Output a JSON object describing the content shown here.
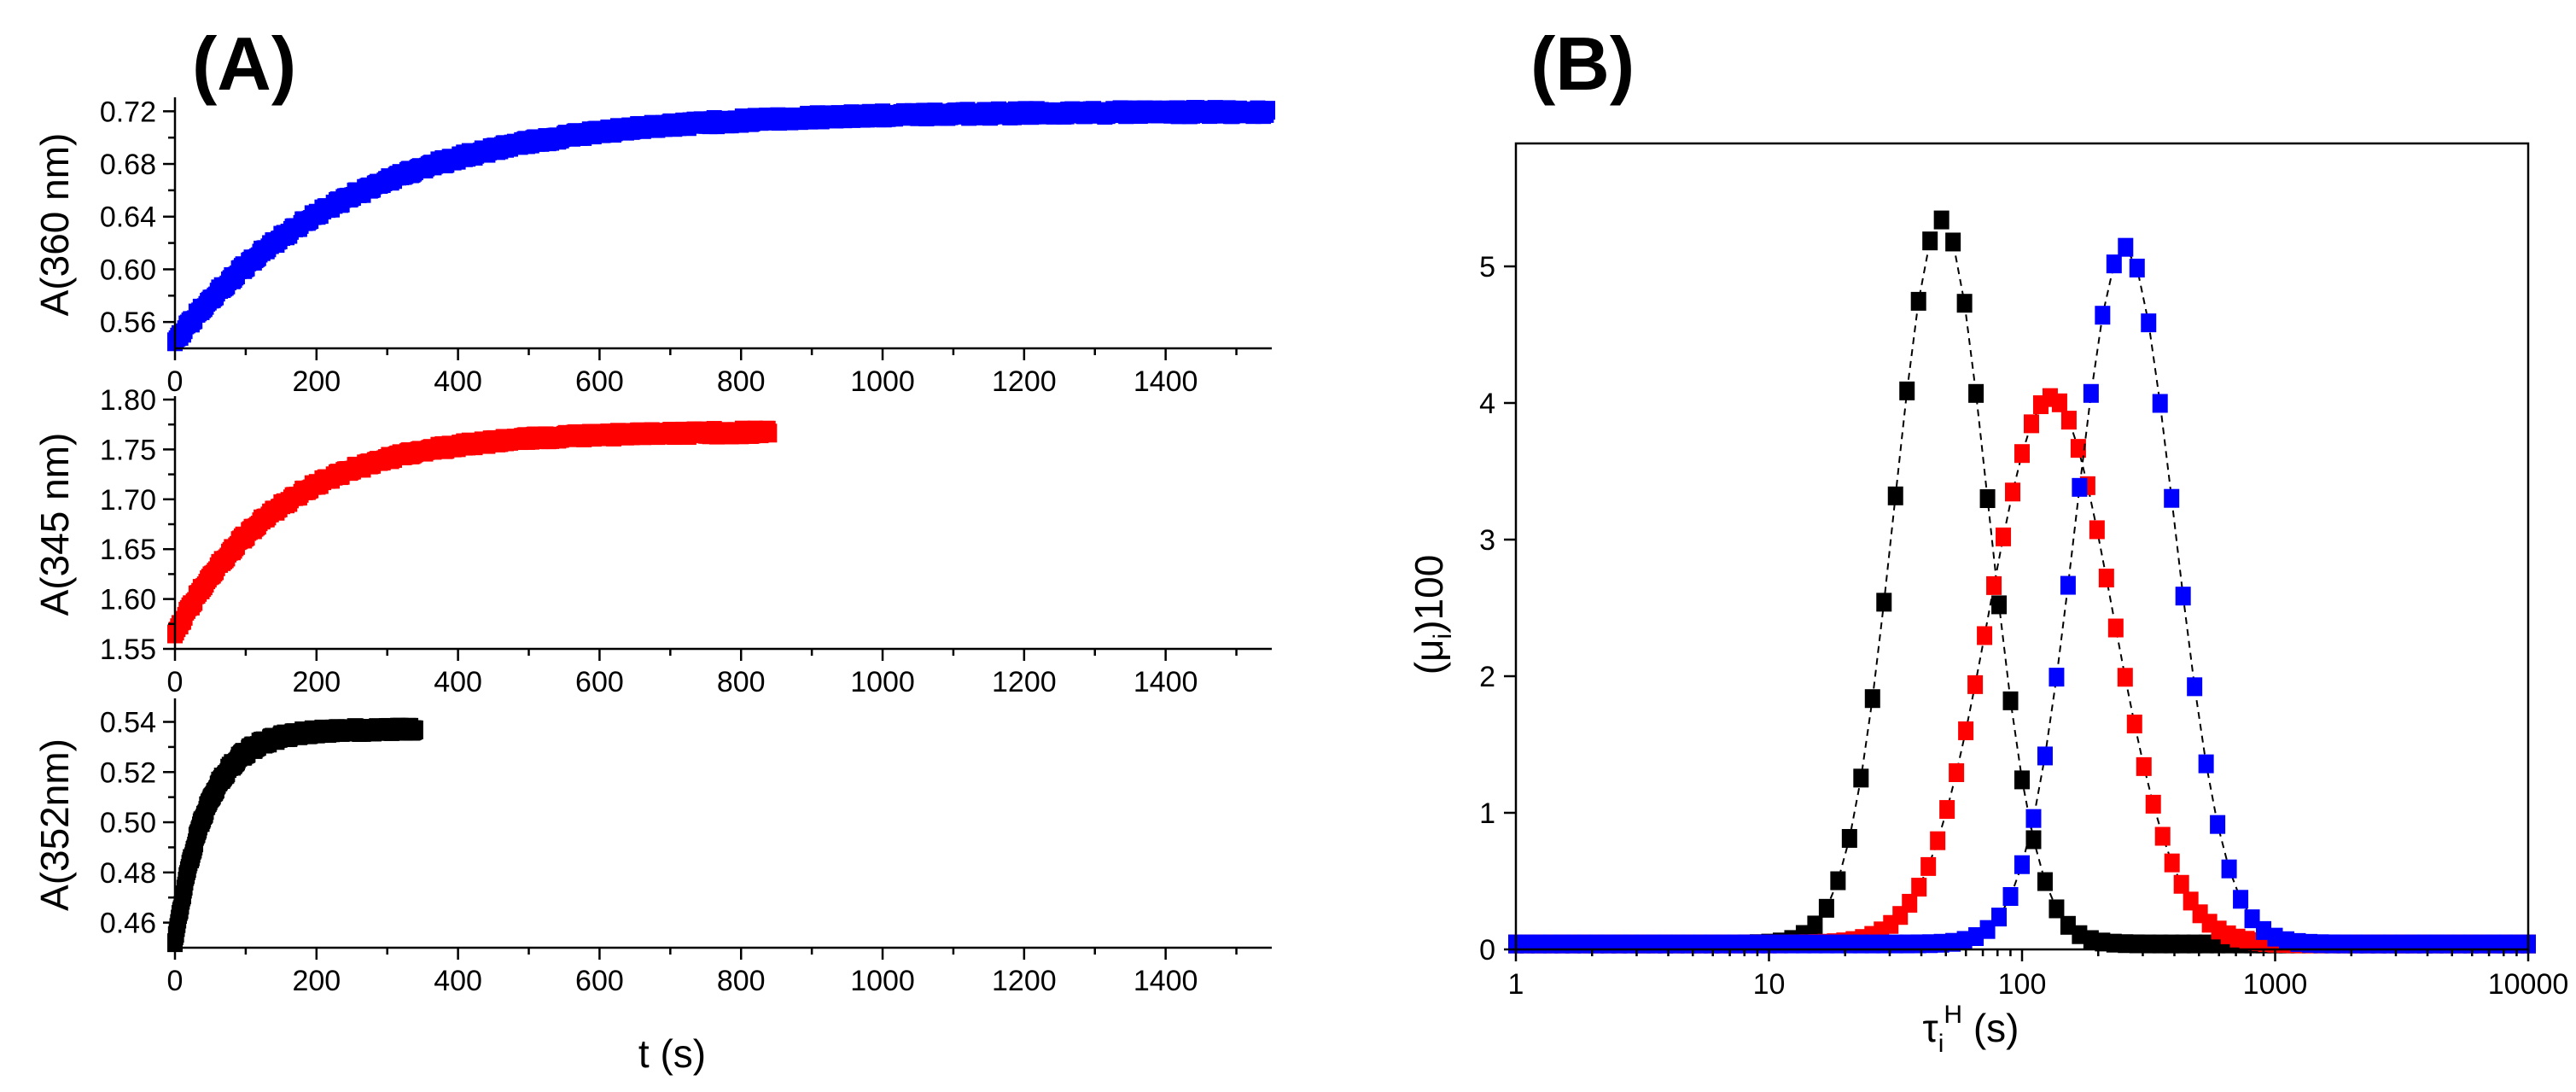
{
  "panels": {
    "A": {
      "letter": "(A)"
    },
    "B": {
      "letter": "(B)"
    }
  },
  "chart_data": [
    {
      "id": "A1",
      "type": "scatter",
      "title": "",
      "xlabel": "t (s)",
      "ylabel": "A(360 nm)",
      "xlim": [
        0,
        1550
      ],
      "ylim": [
        0.54,
        0.728
      ],
      "xticks": [
        0,
        200,
        400,
        600,
        800,
        1000,
        1200,
        1400
      ],
      "yticks": [
        0.56,
        0.6,
        0.64,
        0.68,
        0.72
      ],
      "ytick_labels": [
        "0.56",
        "0.60",
        "0.64",
        "0.68",
        "0.72"
      ],
      "series": [
        {
          "name": "360 nm",
          "color": "#0000ff",
          "model": "exp",
          "y0": 0.545,
          "yinf": 0.72,
          "tau": 250,
          "t_end": 1545,
          "x_step": 2
        }
      ]
    },
    {
      "id": "A2",
      "type": "scatter",
      "xlabel": "t (s)",
      "ylabel": "A(345 nm)",
      "xlim": [
        0,
        1550
      ],
      "ylim": [
        1.55,
        1.8
      ],
      "xticks": [
        0,
        200,
        400,
        600,
        800,
        1000,
        1200,
        1400
      ],
      "yticks": [
        1.55,
        1.6,
        1.65,
        1.7,
        1.75,
        1.8
      ],
      "ytick_labels": [
        "1.55",
        "1.60",
        "1.65",
        "1.70",
        "1.75",
        "1.80"
      ],
      "series": [
        {
          "name": "345 nm",
          "color": "#ff0000",
          "model": "exp",
          "y0": 1.565,
          "yinf": 1.768,
          "tau": 150,
          "t_end": 840,
          "x_step": 2
        }
      ]
    },
    {
      "id": "A3",
      "type": "scatter",
      "xlabel": "t (s)",
      "ylabel": "A(352nm)",
      "xlim": [
        0,
        1550
      ],
      "ylim": [
        0.45,
        0.548
      ],
      "xticks": [
        0,
        200,
        400,
        600,
        800,
        1000,
        1200,
        1400
      ],
      "yticks": [
        0.46,
        0.48,
        0.5,
        0.52,
        0.54
      ],
      "ytick_labels": [
        "0.46",
        "0.48",
        "0.50",
        "0.52",
        "0.54"
      ],
      "series": [
        {
          "name": "352 nm",
          "color": "#000000",
          "model": "exp",
          "y0": 0.452,
          "yinf": 0.537,
          "tau": 45,
          "t_end": 340,
          "x_step": 1
        }
      ]
    },
    {
      "id": "B",
      "type": "scatter",
      "xscale": "log",
      "xlabel_main": "τ",
      "xlabel_sub": "i",
      "xlabel_sup": "H",
      "xlabel_unit": " (s)",
      "ylabel_main": "(μ",
      "ylabel_sub": "i",
      "ylabel_tail": ")100",
      "xlim": [
        1,
        10000
      ],
      "ylim": [
        0,
        5.9
      ],
      "xticks": [
        1,
        10,
        100,
        1000,
        10000
      ],
      "xtick_labels": [
        "1",
        "10",
        "100",
        "1000",
        "10000"
      ],
      "yticks": [
        0,
        1,
        2,
        3,
        4,
        5
      ],
      "ytick_labels": [
        "0",
        "1",
        "2",
        "3",
        "4",
        "5"
      ],
      "series": [
        {
          "name": "black",
          "color": "#000000",
          "peak_tau": 48,
          "peak": 5.3,
          "log_sigma": 0.185,
          "points_per_decade": 22,
          "baseline": 0.04
        },
        {
          "name": "red",
          "color": "#ff0000",
          "peak_tau": 130,
          "peak": 4.0,
          "log_sigma": 0.245,
          "points_per_decade": 27,
          "baseline": 0.04
        },
        {
          "name": "blue",
          "color": "#0000ff",
          "peak_tau": 255,
          "peak": 5.1,
          "log_sigma": 0.195,
          "points_per_decade": 22,
          "baseline": 0.04
        }
      ]
    }
  ]
}
